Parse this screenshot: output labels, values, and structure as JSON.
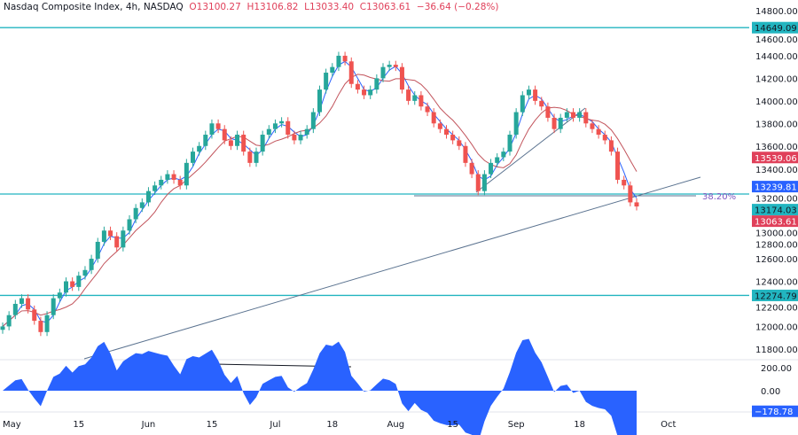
{
  "header": {
    "symbol": "Nasdaq Composite Index, 4h, NASDAQ",
    "open": "O13100.27",
    "high": "H13106.82",
    "low": "L13033.40",
    "close": "C13063.61",
    "change": "−36.64 (−0.28%)"
  },
  "chart_data": {
    "type": "candlestick",
    "title": "Nasdaq Composite Index, 4h, NASDAQ",
    "ylim": [
      11700,
      14900
    ],
    "y_ticks": [
      11800,
      12000,
      12200,
      12400,
      12600,
      12800,
      13000,
      13200,
      13400,
      13600,
      13800,
      14000,
      14200,
      14400,
      14600,
      14800
    ],
    "x_ticks": [
      {
        "label": "May",
        "i": 0
      },
      {
        "label": "15",
        "i": 12
      },
      {
        "label": "Jun",
        "i": 23
      },
      {
        "label": "15",
        "i": 33
      },
      {
        "label": "Jul",
        "i": 43
      },
      {
        "label": "18",
        "i": 52
      },
      {
        "label": "Aug",
        "i": 62
      },
      {
        "label": "15",
        "i": 71
      },
      {
        "label": "Sep",
        "i": 81
      },
      {
        "label": "18",
        "i": 91
      },
      {
        "label": "Oct",
        "i": 105
      }
    ],
    "closes": [
      12000,
      12100,
      12200,
      12250,
      12150,
      12050,
      11950,
      12100,
      12250,
      12300,
      12400,
      12350,
      12450,
      12500,
      12600,
      12750,
      12850,
      12800,
      12700,
      12850,
      12950,
      13050,
      13100,
      13200,
      13250,
      13300,
      13350,
      13300,
      13250,
      13450,
      13550,
      13600,
      13700,
      13800,
      13750,
      13650,
      13600,
      13700,
      13550,
      13450,
      13550,
      13700,
      13750,
      13800,
      13820,
      13700,
      13650,
      13700,
      13750,
      13900,
      14100,
      14250,
      14300,
      14400,
      14350,
      14150,
      14100,
      14050,
      14100,
      14200,
      14300,
      14320,
      14300,
      14100,
      14000,
      14050,
      13950,
      13900,
      13800,
      13750,
      13700,
      13650,
      13600,
      13450,
      13350,
      13200,
      13350,
      13450,
      13500,
      13550,
      13700,
      13900,
      14050,
      14100,
      14000,
      13950,
      13850,
      13750,
      13850,
      13900,
      13850,
      13900,
      13800,
      13750,
      13700,
      13650,
      13550,
      13300,
      13250,
      13100,
      13063.61
    ],
    "horizontal_levels": [
      {
        "value": 14649.09,
        "label": "14649.09"
      },
      {
        "value": 13174.03,
        "label": "13174.03"
      },
      {
        "value": 12274.79,
        "label": "12274.79"
      }
    ],
    "price_labels": [
      {
        "value": 13539.06,
        "label": "13539.06",
        "color": "#e0405a"
      },
      {
        "value": 13239.81,
        "label": "13239.81",
        "color": "#2962ff"
      },
      {
        "value": 13063.61,
        "label": "13063.61",
        "color": "#e0405a"
      }
    ],
    "fib_label": "38.20%",
    "oscillator": {
      "ticks": [
        {
          "v": 200,
          "label": "200.00"
        },
        {
          "v": 0,
          "label": "0.00"
        }
      ],
      "last": {
        "v": -178.78,
        "label": "−178.78"
      }
    },
    "colors": {
      "up": "#26a69a",
      "down": "#ef5350",
      "level": "#22b5c0",
      "fast_ma": "#2962ff",
      "slow_ma": "#c2545c",
      "osc": "#2962ff"
    }
  }
}
